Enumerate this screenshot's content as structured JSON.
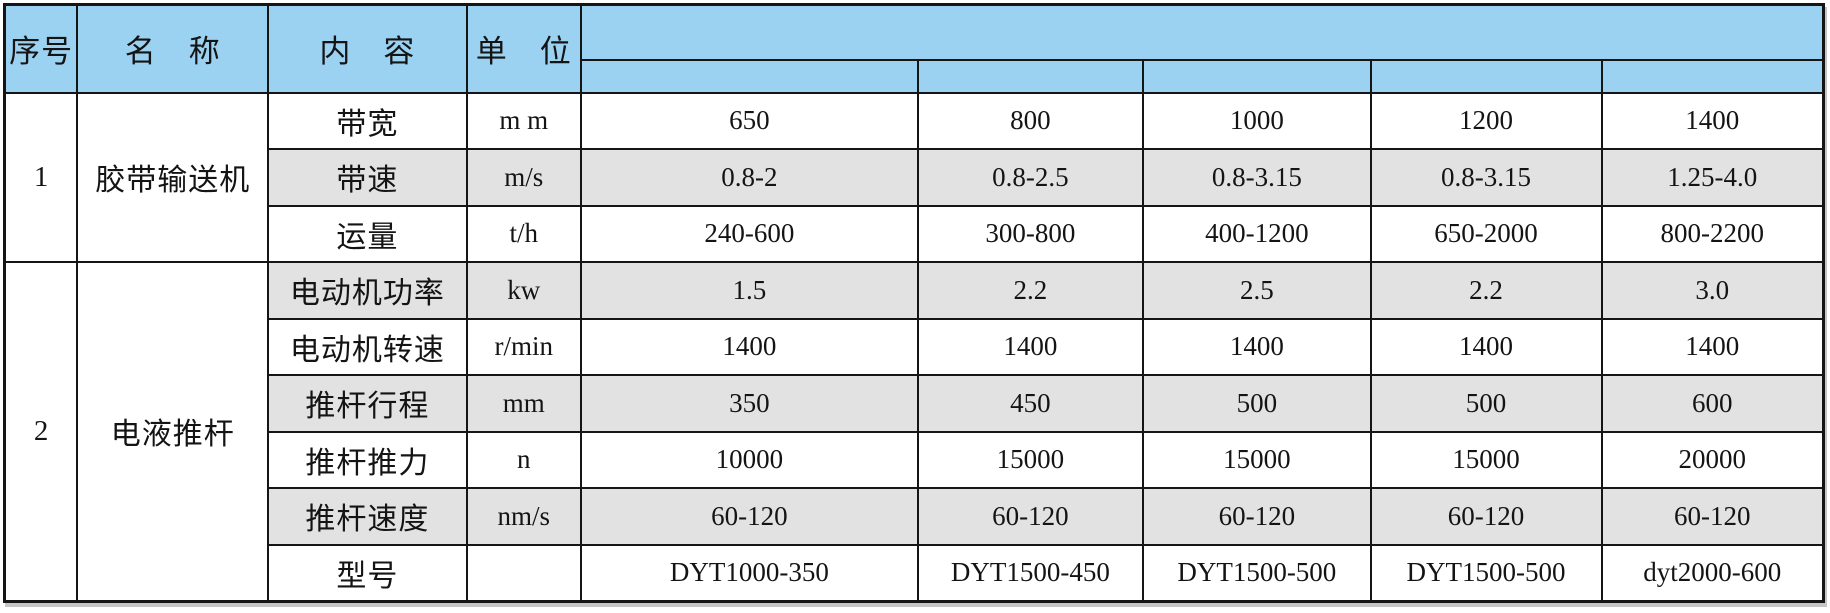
{
  "colors": {
    "header_bg": "#9bd2f2",
    "stripe_bg": "#e2e2e2",
    "border": "#151515",
    "row_bg": "#ffffff"
  },
  "header": {
    "no": "序号",
    "name": "名　称",
    "content": "内　容",
    "unit": "单　位"
  },
  "groups": [
    {
      "no": "1",
      "name": "胶带输送机"
    },
    {
      "no": "2",
      "name": "电液推杆"
    }
  ],
  "rows": [
    {
      "content": "带宽",
      "unit": "m m",
      "values": [
        "650",
        "800",
        "1000",
        "1200",
        "1400"
      ]
    },
    {
      "content": "带速",
      "unit": "m/s",
      "values": [
        "0.8-2",
        "0.8-2.5",
        "0.8-3.15",
        "0.8-3.15",
        "1.25-4.0"
      ]
    },
    {
      "content": "运量",
      "unit": "t/h",
      "values": [
        "240-600",
        "300-800",
        "400-1200",
        "650-2000",
        "800-2200"
      ]
    },
    {
      "content": "电动机功率",
      "unit": "kw",
      "values": [
        "1.5",
        "2.2",
        "2.5",
        "2.2",
        "3.0"
      ]
    },
    {
      "content": "电动机转速",
      "unit": "r/min",
      "values": [
        "1400",
        "1400",
        "1400",
        "1400",
        "1400"
      ]
    },
    {
      "content": "推杆行程",
      "unit": "mm",
      "values": [
        "350",
        "450",
        "500",
        "500",
        "600"
      ]
    },
    {
      "content": "推杆推力",
      "unit": "n",
      "values": [
        "10000",
        "15000",
        "15000",
        "15000",
        "20000"
      ]
    },
    {
      "content": "推杆速度",
      "unit": "nm/s",
      "values": [
        "60-120",
        "60-120",
        "60-120",
        "60-120",
        "60-120"
      ]
    },
    {
      "content": "型号",
      "unit": "",
      "values": [
        "DYT1000-350",
        "DYT1500-450",
        "DYT1500-500",
        "DYT1500-500",
        "dyt2000-600"
      ]
    }
  ]
}
